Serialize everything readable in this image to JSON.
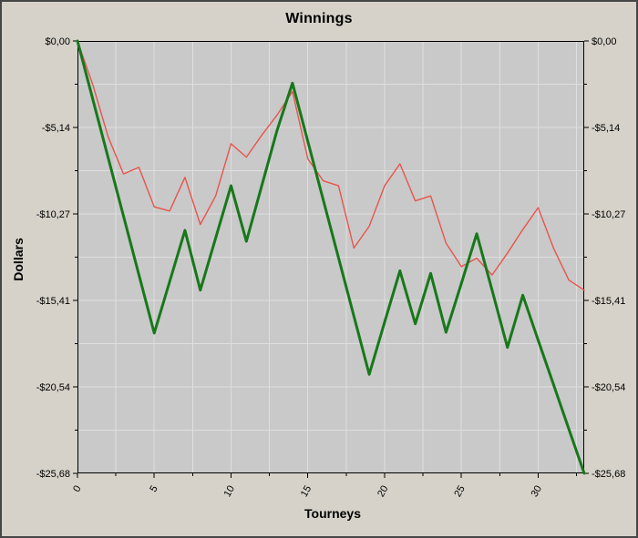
{
  "title": "Winnings",
  "colors": {
    "panel_bg": "#d6d2c9",
    "plot_bg": "#c9c9c9",
    "grid": "#dfdfdf",
    "axis": "#000000",
    "tick_label": "#000000"
  },
  "y_axis": {
    "title": "Dollars"
  },
  "x_axis": {
    "title": "Tourneys"
  },
  "chart_data": {
    "type": "line",
    "title": "Winnings",
    "xlabel": "Tourneys",
    "ylabel": "Dollars",
    "xlim": [
      0,
      33
    ],
    "ylim": [
      -25.68,
      0
    ],
    "x_ticks": [
      0,
      5,
      10,
      15,
      20,
      25,
      30
    ],
    "y_ticks": [
      0,
      -5.136,
      -10.272,
      -15.408,
      -20.544,
      -25.68
    ],
    "y_tick_labels": [
      "$0,00",
      "-$5,14",
      "-$10,27",
      "-$15,41",
      "-$20,54",
      "-$25,68"
    ],
    "grid": true,
    "legend": "none",
    "x_is_index": true,
    "series": [
      {
        "name": "red-line",
        "color": "#e8544b",
        "width": 1.4,
        "values": [
          0,
          -2.6,
          -5.7,
          -7.9,
          -7.5,
          -9.85,
          -10.1,
          -8.1,
          -10.9,
          -9.2,
          -6.1,
          -6.9,
          -5.6,
          -4.4,
          -3.0,
          -7.0,
          -8.3,
          -8.6,
          -12.3,
          -11.0,
          -8.6,
          -7.3,
          -9.5,
          -9.2,
          -12.0,
          -13.4,
          -12.9,
          -13.9,
          -12.6,
          -11.2,
          -9.9,
          -12.3,
          -14.2,
          -14.8
        ]
      },
      {
        "name": "green-line",
        "color": "#17781a",
        "width": 3,
        "values": [
          0,
          -3.47,
          -6.94,
          -10.41,
          -13.88,
          -17.35,
          -14.3,
          -11.25,
          -14.8,
          -11.7,
          -8.6,
          -11.9,
          -8.6,
          -5.3,
          -2.5,
          -5.96,
          -9.42,
          -12.88,
          -16.34,
          -19.8,
          -16.7,
          -13.65,
          -16.8,
          -13.8,
          -17.3,
          -14.4,
          -11.45,
          -14.8,
          -18.2,
          -15.1,
          -17.77,
          -20.4,
          -23.05,
          -25.68
        ]
      }
    ]
  }
}
